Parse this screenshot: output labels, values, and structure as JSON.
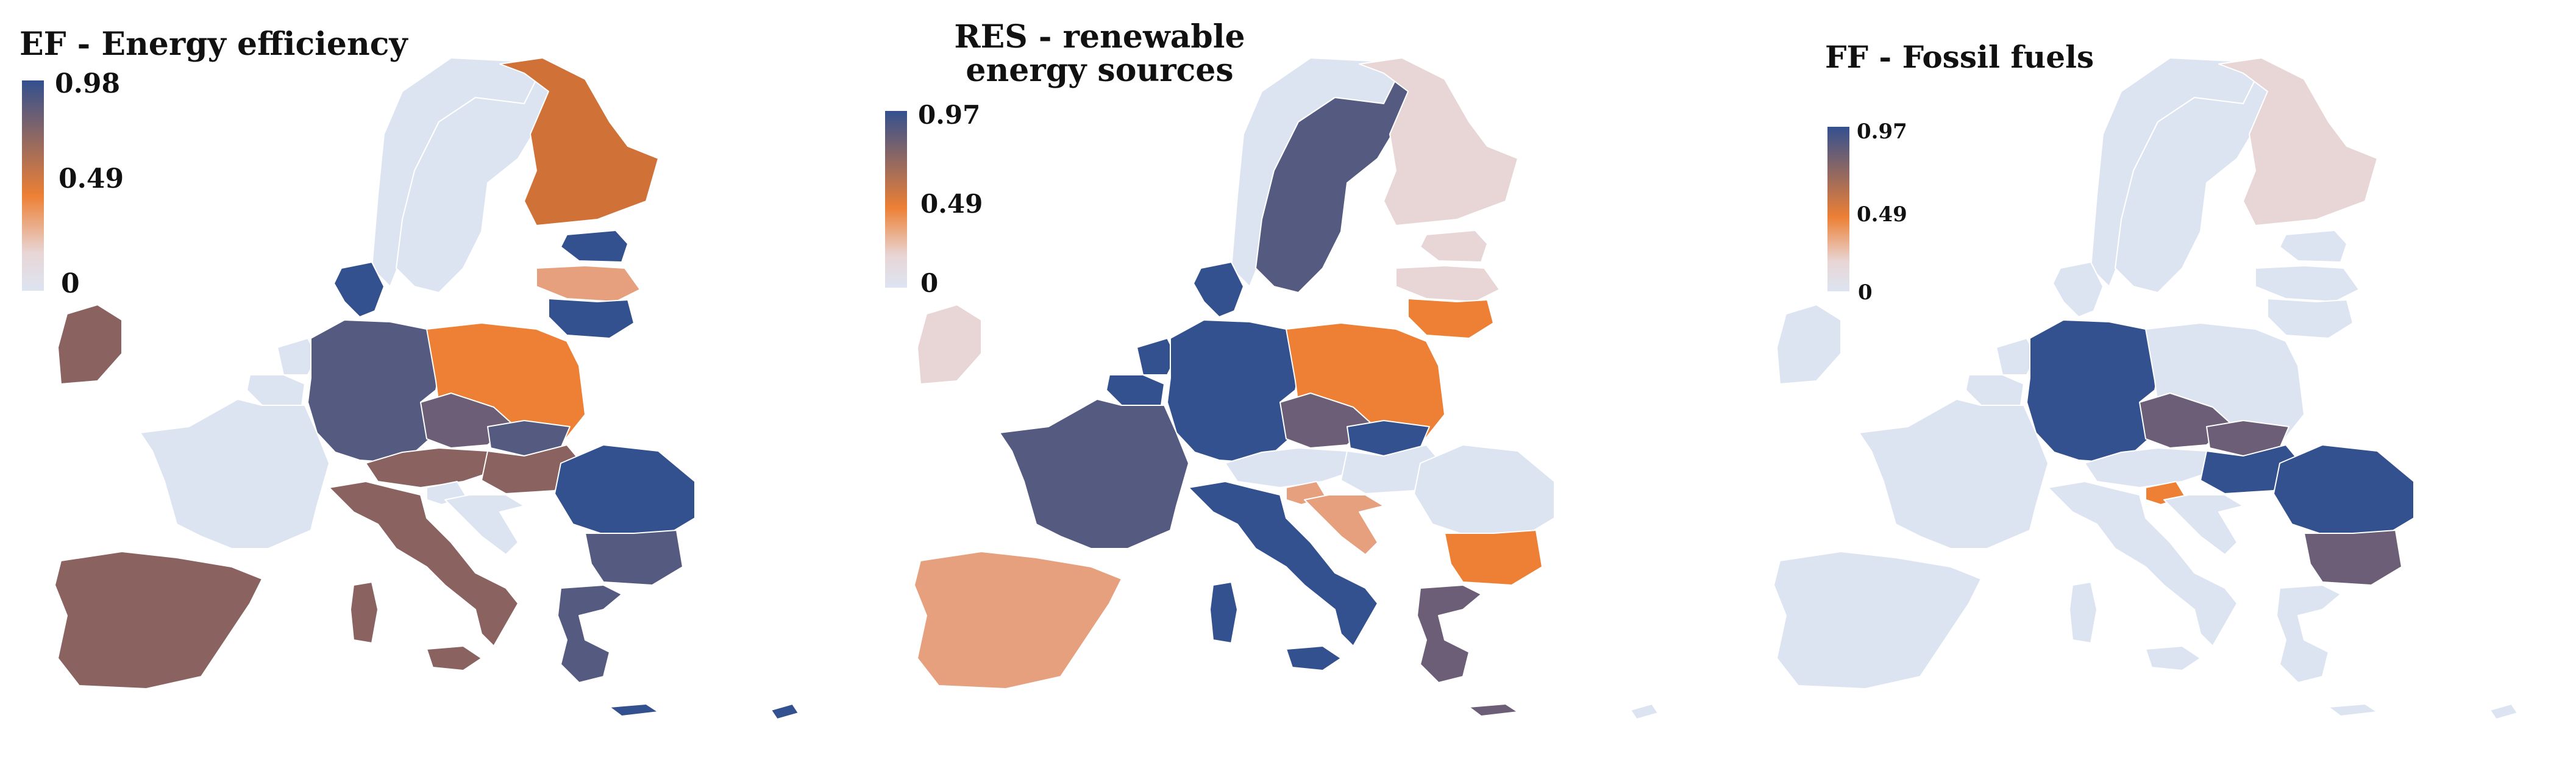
{
  "colors": {
    "high": "#33508f",
    "mid": "#ed8035",
    "low": "#e8d6d6",
    "zero": "#dde4f1",
    "dark_mauve": "#6b5e76",
    "brown": "#8a6260",
    "burnt": "#d07138",
    "salmon": "#e6a07e",
    "slate": "#545a80"
  },
  "panels": [
    {
      "title": "EF - Energy efficiency",
      "legend": {
        "max": "0.98",
        "mid": "0.49",
        "min": "0"
      },
      "regions": {
        "finland": "burnt",
        "sweden": "zero",
        "norway": "zero",
        "baltic_north": "high",
        "baltic_mid": "salmon",
        "baltic_south": "high",
        "ireland": "brown",
        "denmark": "high",
        "netherlands": "zero",
        "belgium": "zero",
        "france": "zero",
        "germany": "slate",
        "poland": "mid",
        "czech": "dark_mauve",
        "austria": "brown",
        "slovakia": "slate",
        "hungary": "brown",
        "slovenia": "zero",
        "croatia": "zero",
        "italy": "brown",
        "sardinia": "brown",
        "sicily": "brown",
        "romania": "high",
        "bulgaria": "slate",
        "greece": "slate",
        "iberia": "brown",
        "crete": "high",
        "cyprus": "high"
      }
    },
    {
      "title": "RES - renewable energy sources",
      "legend": {
        "max": "0.97",
        "mid": "0.49",
        "min": "0"
      },
      "regions": {
        "finland": "low",
        "sweden": "slate",
        "norway": "zero",
        "baltic_north": "low",
        "baltic_mid": "low",
        "baltic_south": "mid",
        "ireland": "low",
        "denmark": "high",
        "netherlands": "high",
        "belgium": "high",
        "france": "slate",
        "germany": "high",
        "poland": "mid",
        "czech": "dark_mauve",
        "austria": "zero",
        "slovakia": "high",
        "hungary": "zero",
        "slovenia": "salmon",
        "croatia": "salmon",
        "italy": "high",
        "sardinia": "high",
        "sicily": "high",
        "romania": "zero",
        "bulgaria": "mid",
        "greece": "dark_mauve",
        "iberia": "salmon",
        "crete": "dark_mauve",
        "cyprus": "zero"
      }
    },
    {
      "title": "FF - Fossil fuels",
      "legend": {
        "max": "0.97",
        "mid": "0.49",
        "min": "0"
      },
      "regions": {
        "finland": "low",
        "sweden": "zero",
        "norway": "zero",
        "baltic_north": "zero",
        "baltic_mid": "zero",
        "baltic_south": "zero",
        "ireland": "zero",
        "denmark": "zero",
        "netherlands": "zero",
        "belgium": "zero",
        "france": "zero",
        "germany": "high",
        "poland": "zero",
        "czech": "dark_mauve",
        "austria": "zero",
        "slovakia": "dark_mauve",
        "hungary": "high",
        "slovenia": "mid",
        "croatia": "zero",
        "italy": "zero",
        "sardinia": "zero",
        "sicily": "zero",
        "romania": "high",
        "bulgaria": "dark_mauve",
        "greece": "zero",
        "iberia": "zero",
        "crete": "zero",
        "cyprus": "zero"
      }
    }
  ]
}
